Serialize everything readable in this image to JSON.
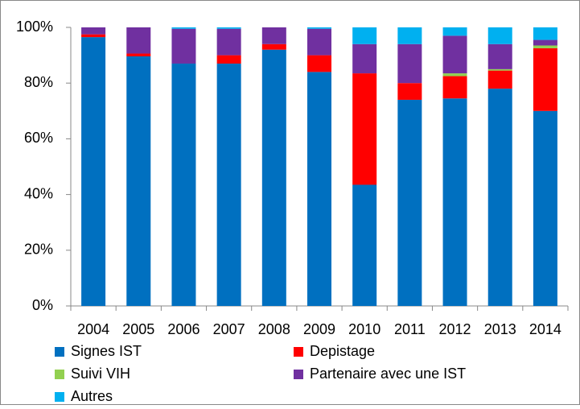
{
  "chart_data": {
    "type": "stacked_bar",
    "categories": [
      "2004",
      "2005",
      "2006",
      "2007",
      "2008",
      "2009",
      "2010",
      "2011",
      "2012",
      "2013",
      "2014"
    ],
    "series": [
      {
        "name": "Signes IST",
        "color": "#0070C0",
        "values": [
          96.5,
          89.6,
          87,
          87,
          92,
          84,
          43.5,
          74,
          74.5,
          78,
          70
        ]
      },
      {
        "name": "Depistage",
        "color": "#FF0000",
        "values": [
          1,
          1,
          0,
          3,
          2,
          6,
          40,
          6,
          8,
          6.5,
          22.5
        ]
      },
      {
        "name": "Suivi VIH",
        "color": "#92D050",
        "values": [
          0,
          0,
          0,
          0,
          0,
          0,
          0,
          0,
          1,
          0.5,
          1
        ]
      },
      {
        "name": "Partenaire avec une IST",
        "color": "#7030A0",
        "values": [
          2.5,
          9.4,
          12.5,
          9.5,
          6,
          9.5,
          10.5,
          14,
          13.5,
          9,
          2
        ]
      },
      {
        "name": "Autres",
        "color": "#00B0F0",
        "values": [
          0,
          0,
          0.5,
          0.5,
          0,
          0.5,
          6,
          6,
          3,
          6,
          4.5
        ]
      }
    ],
    "ylim": [
      0,
      100
    ],
    "yticks": [
      {
        "value": 0,
        "label": "0%"
      },
      {
        "value": 20,
        "label": "20%"
      },
      {
        "value": 40,
        "label": "40%"
      },
      {
        "value": 60,
        "label": "60%"
      },
      {
        "value": 80,
        "label": "80%"
      },
      {
        "value": 100,
        "label": "100%"
      }
    ],
    "grid": false
  }
}
